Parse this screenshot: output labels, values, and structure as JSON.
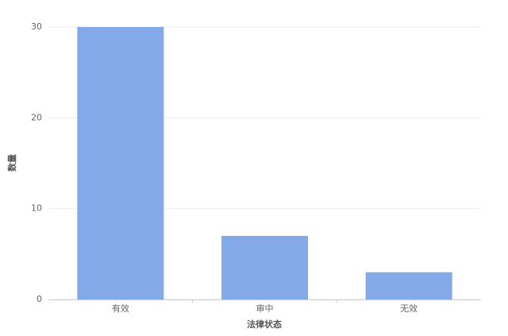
{
  "chart_data": {
    "type": "bar",
    "x_label": "法律状态",
    "y_label": "数量",
    "categories": [
      "有效",
      "审中",
      "无效"
    ],
    "values": [
      30,
      7,
      3
    ],
    "color": "#84a9e8",
    "ylim": [
      0,
      30
    ],
    "yticks": [
      0,
      10,
      20,
      30
    ],
    "grid": true
  }
}
